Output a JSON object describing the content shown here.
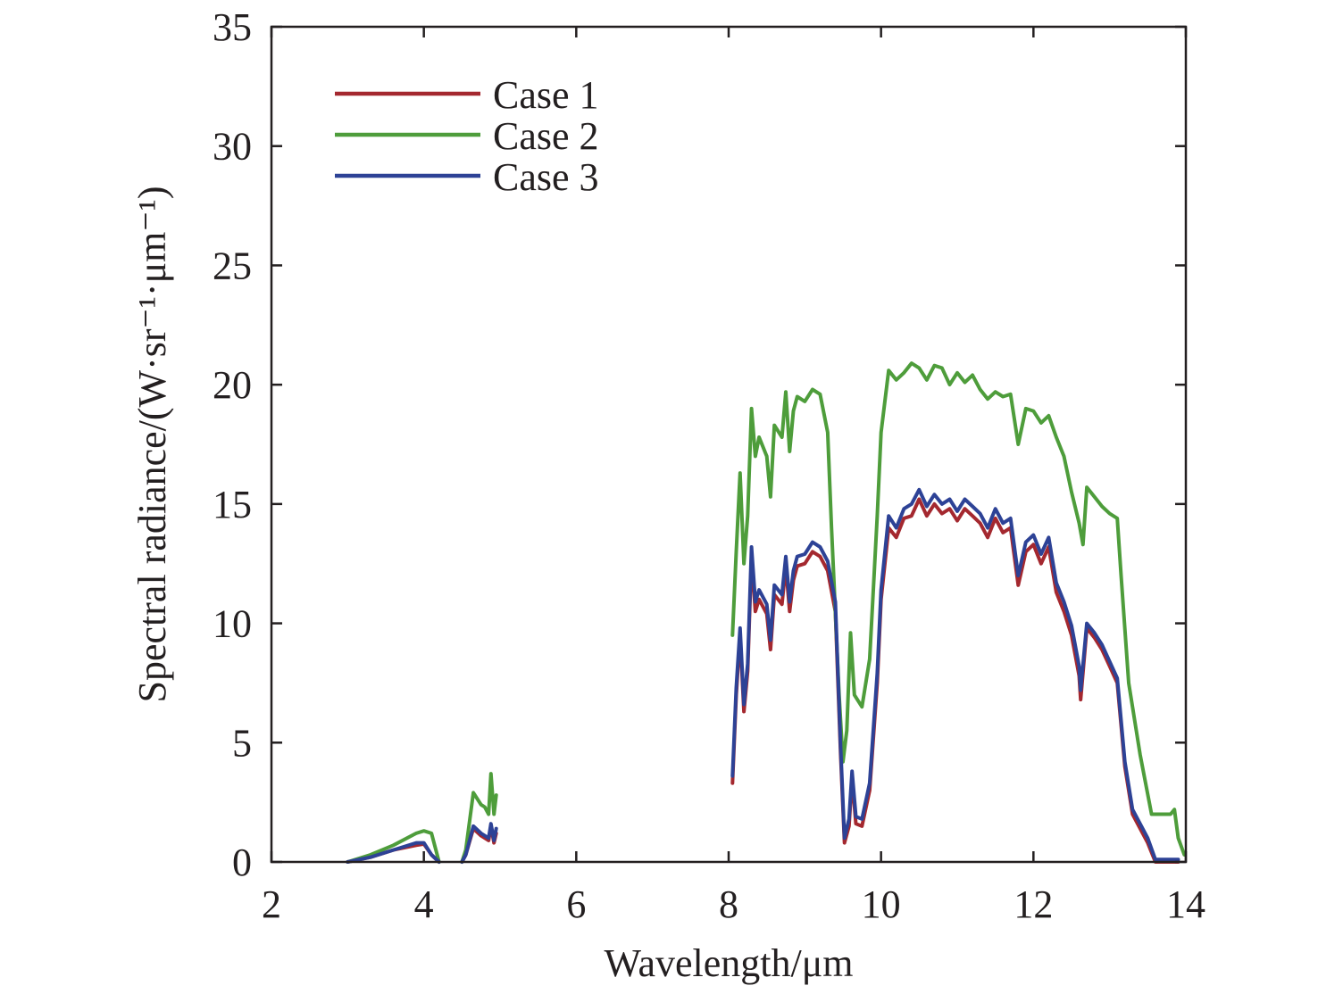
{
  "chart_data": {
    "type": "line",
    "title": "",
    "xlabel": "Wavelength/μm",
    "ylabel": "Spectral radiance/(W·sr⁻¹·μm⁻¹)",
    "xlim": [
      2,
      14
    ],
    "ylim": [
      0,
      35
    ],
    "xticks": [
      "2",
      "4",
      "6",
      "8",
      "10",
      "12",
      "14"
    ],
    "yticks": [
      "0",
      "5",
      "10",
      "15",
      "20",
      "25",
      "30",
      "35"
    ],
    "grid": false,
    "legend_position": "top-left",
    "series": [
      {
        "name": "Case 1",
        "color": "#a4282f",
        "segments": [
          [
            [
              3.0,
              0.0
            ],
            [
              3.3,
              0.2
            ],
            [
              3.6,
              0.5
            ],
            [
              3.9,
              0.7
            ],
            [
              4.0,
              0.75
            ],
            [
              4.1,
              0.3
            ],
            [
              4.2,
              0.0
            ]
          ],
          [
            [
              4.5,
              0.0
            ],
            [
              4.55,
              0.3
            ],
            [
              4.65,
              1.4
            ],
            [
              4.75,
              1.1
            ],
            [
              4.85,
              0.9
            ],
            [
              4.88,
              1.5
            ],
            [
              4.92,
              0.8
            ],
            [
              4.95,
              1.2
            ]
          ],
          [
            [
              8.05,
              3.3
            ],
            [
              8.1,
              7.0
            ],
            [
              8.15,
              9.5
            ],
            [
              8.2,
              6.3
            ],
            [
              8.25,
              8.0
            ],
            [
              8.3,
              12.8
            ],
            [
              8.35,
              10.5
            ],
            [
              8.4,
              11.0
            ],
            [
              8.5,
              10.4
            ],
            [
              8.55,
              8.9
            ],
            [
              8.6,
              11.2
            ],
            [
              8.7,
              10.8
            ],
            [
              8.75,
              12.4
            ],
            [
              8.8,
              10.5
            ],
            [
              8.85,
              11.8
            ],
            [
              8.9,
              12.4
            ],
            [
              9.0,
              12.5
            ],
            [
              9.1,
              13.0
            ],
            [
              9.2,
              12.8
            ],
            [
              9.3,
              12.2
            ],
            [
              9.4,
              10.5
            ],
            [
              9.47,
              4.5
            ],
            [
              9.52,
              0.8
            ],
            [
              9.58,
              1.5
            ],
            [
              9.62,
              3.5
            ],
            [
              9.67,
              1.6
            ],
            [
              9.75,
              1.5
            ],
            [
              9.85,
              3.0
            ],
            [
              9.95,
              7.5
            ],
            [
              10.0,
              11.0
            ],
            [
              10.1,
              14.0
            ],
            [
              10.2,
              13.6
            ],
            [
              10.3,
              14.4
            ],
            [
              10.4,
              14.5
            ],
            [
              10.5,
              15.2
            ],
            [
              10.6,
              14.5
            ],
            [
              10.7,
              15.0
            ],
            [
              10.8,
              14.6
            ],
            [
              10.9,
              14.8
            ],
            [
              11.0,
              14.3
            ],
            [
              11.1,
              14.8
            ],
            [
              11.2,
              14.5
            ],
            [
              11.3,
              14.2
            ],
            [
              11.4,
              13.6
            ],
            [
              11.5,
              14.4
            ],
            [
              11.6,
              13.8
            ],
            [
              11.7,
              14.0
            ],
            [
              11.8,
              11.6
            ],
            [
              11.9,
              13.0
            ],
            [
              12.0,
              13.3
            ],
            [
              12.1,
              12.5
            ],
            [
              12.2,
              13.2
            ],
            [
              12.3,
              11.3
            ],
            [
              12.4,
              10.5
            ],
            [
              12.5,
              9.5
            ],
            [
              12.6,
              7.8
            ],
            [
              12.62,
              6.8
            ],
            [
              12.7,
              9.8
            ],
            [
              12.8,
              9.4
            ],
            [
              12.9,
              8.9
            ],
            [
              13.0,
              8.2
            ],
            [
              13.1,
              7.5
            ],
            [
              13.2,
              4.0
            ],
            [
              13.3,
              2.0
            ],
            [
              13.5,
              0.8
            ],
            [
              13.6,
              0.0
            ],
            [
              13.9,
              0.0
            ]
          ]
        ]
      },
      {
        "name": "Case 2",
        "color": "#4e9d3b",
        "segments": [
          [
            [
              3.0,
              0.0
            ],
            [
              3.3,
              0.3
            ],
            [
              3.6,
              0.7
            ],
            [
              3.9,
              1.2
            ],
            [
              4.0,
              1.3
            ],
            [
              4.1,
              1.2
            ],
            [
              4.2,
              0.0
            ]
          ],
          [
            [
              4.5,
              0.0
            ],
            [
              4.55,
              0.5
            ],
            [
              4.65,
              2.9
            ],
            [
              4.75,
              2.4
            ],
            [
              4.8,
              2.3
            ],
            [
              4.85,
              2.0
            ],
            [
              4.88,
              3.7
            ],
            [
              4.92,
              2.0
            ],
            [
              4.95,
              2.8
            ]
          ],
          [
            [
              8.05,
              9.5
            ],
            [
              8.1,
              13.0
            ],
            [
              8.15,
              16.3
            ],
            [
              8.2,
              12.5
            ],
            [
              8.25,
              14.5
            ],
            [
              8.3,
              19.0
            ],
            [
              8.35,
              17.0
            ],
            [
              8.4,
              17.8
            ],
            [
              8.5,
              17.0
            ],
            [
              8.55,
              15.3
            ],
            [
              8.6,
              18.3
            ],
            [
              8.7,
              17.8
            ],
            [
              8.75,
              19.7
            ],
            [
              8.8,
              17.2
            ],
            [
              8.85,
              18.9
            ],
            [
              8.9,
              19.5
            ],
            [
              9.0,
              19.3
            ],
            [
              9.1,
              19.8
            ],
            [
              9.2,
              19.6
            ],
            [
              9.3,
              18.0
            ],
            [
              9.35,
              14.0
            ],
            [
              9.45,
              7.0
            ],
            [
              9.5,
              4.2
            ],
            [
              9.55,
              5.5
            ],
            [
              9.6,
              9.6
            ],
            [
              9.65,
              7.0
            ],
            [
              9.75,
              6.5
            ],
            [
              9.85,
              8.5
            ],
            [
              9.95,
              14.5
            ],
            [
              10.0,
              18.0
            ],
            [
              10.1,
              20.6
            ],
            [
              10.2,
              20.2
            ],
            [
              10.3,
              20.5
            ],
            [
              10.4,
              20.9
            ],
            [
              10.5,
              20.7
            ],
            [
              10.6,
              20.2
            ],
            [
              10.7,
              20.8
            ],
            [
              10.8,
              20.7
            ],
            [
              10.9,
              20.0
            ],
            [
              11.0,
              20.5
            ],
            [
              11.1,
              20.1
            ],
            [
              11.2,
              20.4
            ],
            [
              11.3,
              19.8
            ],
            [
              11.4,
              19.4
            ],
            [
              11.5,
              19.7
            ],
            [
              11.6,
              19.5
            ],
            [
              11.7,
              19.6
            ],
            [
              11.8,
              17.5
            ],
            [
              11.9,
              19.0
            ],
            [
              12.0,
              18.9
            ],
            [
              12.1,
              18.4
            ],
            [
              12.2,
              18.7
            ],
            [
              12.3,
              17.8
            ],
            [
              12.4,
              17.0
            ],
            [
              12.5,
              15.5
            ],
            [
              12.6,
              14.2
            ],
            [
              12.65,
              13.3
            ],
            [
              12.7,
              15.7
            ],
            [
              12.8,
              15.3
            ],
            [
              12.9,
              14.9
            ],
            [
              13.0,
              14.6
            ],
            [
              13.1,
              14.4
            ],
            [
              13.15,
              12.0
            ],
            [
              13.25,
              7.5
            ],
            [
              13.4,
              4.5
            ],
            [
              13.55,
              2.0
            ],
            [
              13.7,
              2.0
            ],
            [
              13.8,
              2.0
            ],
            [
              13.85,
              2.2
            ],
            [
              13.9,
              1.0
            ],
            [
              13.98,
              0.3
            ]
          ]
        ]
      },
      {
        "name": "Case 3",
        "color": "#2d4296",
        "segments": [
          [
            [
              3.0,
              0.0
            ],
            [
              3.3,
              0.2
            ],
            [
              3.6,
              0.5
            ],
            [
              3.9,
              0.8
            ],
            [
              4.0,
              0.8
            ],
            [
              4.1,
              0.3
            ],
            [
              4.2,
              0.0
            ]
          ],
          [
            [
              4.5,
              0.0
            ],
            [
              4.55,
              0.3
            ],
            [
              4.65,
              1.5
            ],
            [
              4.75,
              1.2
            ],
            [
              4.85,
              1.0
            ],
            [
              4.88,
              1.6
            ],
            [
              4.92,
              0.9
            ],
            [
              4.95,
              1.4
            ]
          ],
          [
            [
              8.05,
              3.6
            ],
            [
              8.1,
              7.3
            ],
            [
              8.15,
              9.8
            ],
            [
              8.2,
              6.6
            ],
            [
              8.25,
              8.3
            ],
            [
              8.3,
              13.2
            ],
            [
              8.35,
              10.9
            ],
            [
              8.4,
              11.4
            ],
            [
              8.5,
              10.8
            ],
            [
              8.55,
              9.3
            ],
            [
              8.6,
              11.6
            ],
            [
              8.7,
              11.2
            ],
            [
              8.75,
              12.8
            ],
            [
              8.8,
              10.9
            ],
            [
              8.85,
              12.2
            ],
            [
              8.9,
              12.8
            ],
            [
              9.0,
              12.9
            ],
            [
              9.1,
              13.4
            ],
            [
              9.2,
              13.2
            ],
            [
              9.3,
              12.6
            ],
            [
              9.4,
              10.9
            ],
            [
              9.47,
              4.8
            ],
            [
              9.52,
              1.0
            ],
            [
              9.58,
              1.8
            ],
            [
              9.62,
              3.8
            ],
            [
              9.67,
              1.9
            ],
            [
              9.75,
              1.8
            ],
            [
              9.85,
              3.3
            ],
            [
              9.95,
              7.9
            ],
            [
              10.0,
              11.4
            ],
            [
              10.1,
              14.5
            ],
            [
              10.2,
              14.0
            ],
            [
              10.3,
              14.8
            ],
            [
              10.4,
              15.0
            ],
            [
              10.5,
              15.6
            ],
            [
              10.6,
              14.9
            ],
            [
              10.7,
              15.4
            ],
            [
              10.8,
              15.0
            ],
            [
              10.9,
              15.2
            ],
            [
              11.0,
              14.7
            ],
            [
              11.1,
              15.2
            ],
            [
              11.2,
              14.9
            ],
            [
              11.3,
              14.6
            ],
            [
              11.4,
              14.0
            ],
            [
              11.5,
              14.8
            ],
            [
              11.6,
              14.2
            ],
            [
              11.7,
              14.4
            ],
            [
              11.8,
              12.0
            ],
            [
              11.9,
              13.4
            ],
            [
              12.0,
              13.7
            ],
            [
              12.1,
              12.9
            ],
            [
              12.2,
              13.6
            ],
            [
              12.3,
              11.7
            ],
            [
              12.4,
              10.9
            ],
            [
              12.5,
              9.9
            ],
            [
              12.6,
              8.2
            ],
            [
              12.62,
              7.2
            ],
            [
              12.7,
              10.0
            ],
            [
              12.8,
              9.6
            ],
            [
              12.9,
              9.1
            ],
            [
              13.0,
              8.4
            ],
            [
              13.1,
              7.7
            ],
            [
              13.2,
              4.2
            ],
            [
              13.3,
              2.2
            ],
            [
              13.5,
              1.0
            ],
            [
              13.6,
              0.1
            ],
            [
              13.9,
              0.1
            ]
          ]
        ]
      }
    ]
  }
}
